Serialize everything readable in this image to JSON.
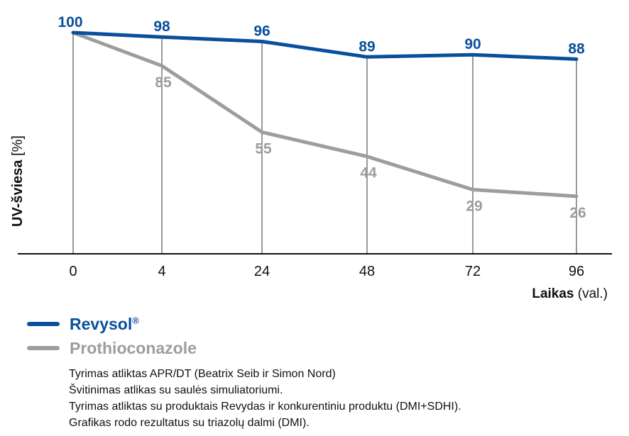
{
  "chart_data": {
    "type": "line",
    "categories": [
      "0",
      "4",
      "24",
      "48",
      "72",
      "96"
    ],
    "series": [
      {
        "name": "Revysol®",
        "values": [
          100,
          98,
          96,
          89,
          90,
          88
        ],
        "color": "#0a4f9c"
      },
      {
        "name": "Prothioconazole",
        "values": [
          100,
          85,
          55,
          44,
          29,
          26
        ],
        "color": "#9d9d9d"
      }
    ],
    "ylabel": {
      "bold": "UV-šviesa",
      "unit": " [%]"
    },
    "xlabel": {
      "bold": "Laikas",
      "unit": " (val.)"
    },
    "ylim": [
      0,
      100
    ],
    "grid": "vertical lines at each category",
    "legend": "below chart, left"
  },
  "legend": {
    "revysol": {
      "name": "Revysol",
      "mark": "®"
    },
    "prothio": {
      "name": "Prothioconazole"
    }
  },
  "notes": [
    "Tyrimas atliktas APR/DT (Beatrix Seib ir Simon Nord)",
    "Švitinimas atlikas su saulės simuliatoriumi.",
    "Tyrimas atliktas su produktais Revydas ir konkurentiniu produktu (DMI+SDHI).",
    "Grafikas rodo rezultatus su triazolų dalmi (DMI)."
  ]
}
